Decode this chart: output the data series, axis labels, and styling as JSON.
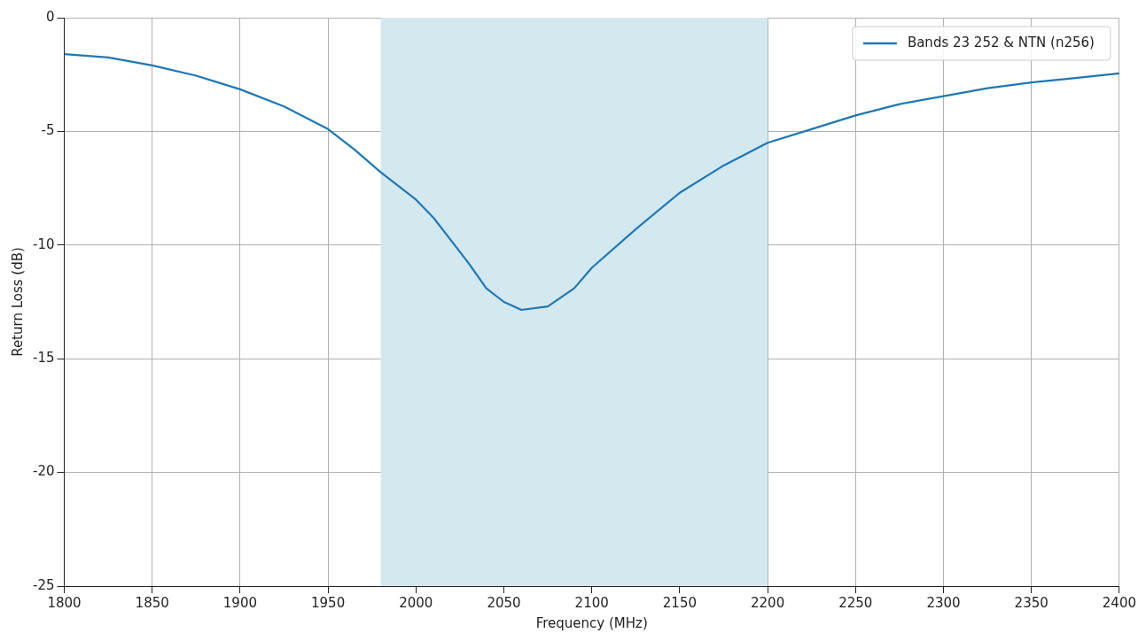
{
  "chart_data": {
    "type": "line",
    "xlabel": "Frequency (MHz)",
    "ylabel": "Return Loss (dB)",
    "x": [
      1800,
      1825,
      1850,
      1875,
      1900,
      1925,
      1950,
      1965,
      1980,
      2000,
      2010,
      2020,
      2030,
      2040,
      2050,
      2060,
      2075,
      2090,
      2100,
      2125,
      2150,
      2175,
      2200,
      2225,
      2250,
      2275,
      2300,
      2325,
      2350,
      2375,
      2400
    ],
    "series": [
      {
        "name": "Bands 23 252 & NTN (n256)",
        "color": "#1f77b4",
        "values": [
          -1.6,
          -1.75,
          -2.1,
          -2.55,
          -3.15,
          -3.9,
          -4.9,
          -5.8,
          -6.8,
          -8.0,
          -8.8,
          -9.8,
          -10.8,
          -11.9,
          -12.5,
          -12.85,
          -12.7,
          -11.9,
          -11.0,
          -9.3,
          -7.7,
          -6.5,
          -5.5,
          -4.9,
          -4.3,
          -3.8,
          -3.45,
          -3.1,
          -2.85,
          -2.65,
          -2.45
        ]
      }
    ],
    "xlim": [
      1800,
      2400
    ],
    "xticks": [
      1800,
      1850,
      1900,
      1950,
      2000,
      2050,
      2100,
      2150,
      2200,
      2250,
      2300,
      2350,
      2400
    ],
    "ylim": [
      -25,
      0
    ],
    "yticks": [
      -25,
      -20,
      -15,
      -10,
      -5,
      0
    ],
    "bands": [
      {
        "axis": "x",
        "from": 1980,
        "to": 2200,
        "color": "#d4e8f0"
      }
    ],
    "grid": true,
    "legend": "top right",
    "marker": "none",
    "line_style": "solid"
  }
}
